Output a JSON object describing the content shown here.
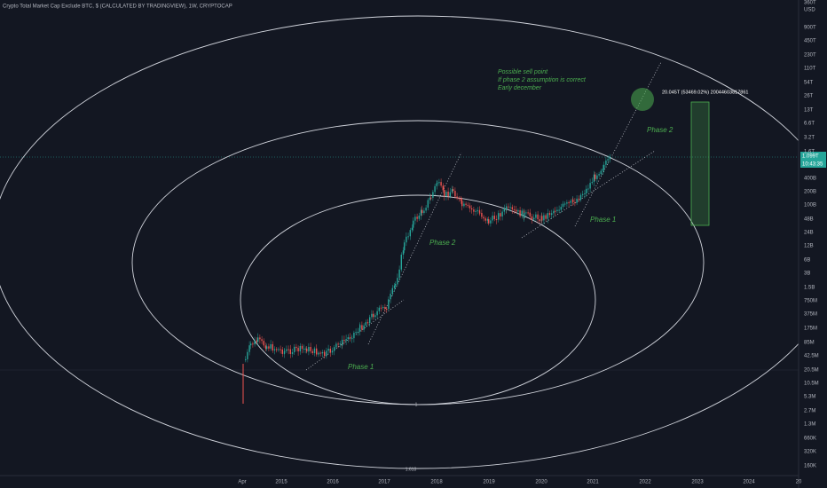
{
  "header": {
    "title": "Crypto Total Market Cap Exclude BTC, $ (CALCULATED BY TRADINGVIEW), 1W, CRYPTOCAP"
  },
  "price_axis": {
    "labels": [
      "360T",
      "USD",
      "900T",
      "450T",
      "230T",
      "110T",
      "54T",
      "26T",
      "13T",
      "6.6T",
      "3.2T",
      "1.6T",
      "400B",
      "200B",
      "100B",
      "48B",
      "24B",
      "12B",
      "6B",
      "3B",
      "1.5B",
      "750M",
      "375M",
      "175M",
      "85M",
      "42.5M",
      "20.5M",
      "10.5M",
      "5.3M",
      "2.7M",
      "1.3M",
      "660K",
      "320K",
      "160K"
    ],
    "last_price": "1.099T",
    "countdown": "10:43:35"
  },
  "time_axis": {
    "labels": [
      "Apr",
      "2015",
      "2016",
      "2017",
      "2018",
      "2019",
      "2020",
      "2021",
      "2022",
      "2023",
      "2024",
      "20"
    ]
  },
  "annotations": {
    "sell_note": [
      "Possible sell point",
      "If phase 2 assumption is correct",
      "Early december"
    ],
    "phase_labels": [
      "Phase 2",
      "Phase 1",
      "Phase 2",
      "Phase 1"
    ],
    "measure": "20.045T (53469.02%) 20044603817861",
    "fib_levels": [
      "1",
      "1.618"
    ]
  }
}
